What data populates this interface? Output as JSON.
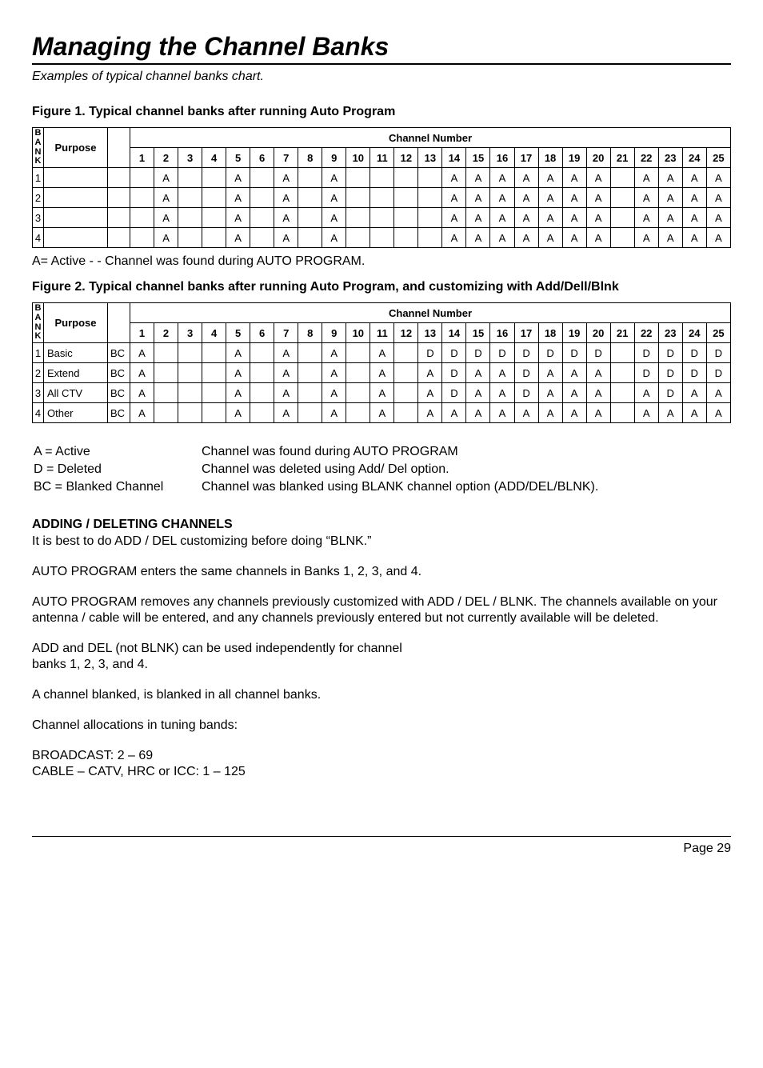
{
  "title": "Managing the Channel Banks",
  "subtitle": "Examples of typical channel banks chart.",
  "fig1": {
    "caption": "Figure 1.  Typical channel banks after running Auto Program",
    "bank_header": "BANK",
    "purpose_header": "Purpose",
    "channel_header": "Channel Number",
    "col_extra": "",
    "cols": [
      "1",
      "2",
      "3",
      "4",
      "5",
      "6",
      "7",
      "8",
      "9",
      "10",
      "11",
      "12",
      "13",
      "14",
      "15",
      "16",
      "17",
      "18",
      "19",
      "20",
      "21",
      "22",
      "23",
      "24",
      "25"
    ],
    "rows": [
      {
        "bank": "1",
        "purpose": "",
        "bc": "",
        "cells": [
          "",
          "A",
          "",
          "",
          "A",
          "",
          "A",
          "",
          "A",
          "",
          "",
          "",
          "",
          "A",
          "A",
          "A",
          "A",
          "A",
          "A",
          "A",
          "",
          "A",
          "A",
          "A",
          "A"
        ]
      },
      {
        "bank": "2",
        "purpose": "",
        "bc": "",
        "cells": [
          "",
          "A",
          "",
          "",
          "A",
          "",
          "A",
          "",
          "A",
          "",
          "",
          "",
          "",
          "A",
          "A",
          "A",
          "A",
          "A",
          "A",
          "A",
          "",
          "A",
          "A",
          "A",
          "A"
        ]
      },
      {
        "bank": "3",
        "purpose": "",
        "bc": "",
        "cells": [
          "",
          "A",
          "",
          "",
          "A",
          "",
          "A",
          "",
          "A",
          "",
          "",
          "",
          "",
          "A",
          "A",
          "A",
          "A",
          "A",
          "A",
          "A",
          "",
          "A",
          "A",
          "A",
          "A"
        ]
      },
      {
        "bank": "4",
        "purpose": "",
        "bc": "",
        "cells": [
          "",
          "A",
          "",
          "",
          "A",
          "",
          "A",
          "",
          "A",
          "",
          "",
          "",
          "",
          "A",
          "A",
          "A",
          "A",
          "A",
          "A",
          "A",
          "",
          "A",
          "A",
          "A",
          "A"
        ]
      }
    ],
    "note": "A= Active - - Channel was found during AUTO PROGRAM."
  },
  "fig2": {
    "caption": "Figure 2.  Typical channel banks after running Auto Program, and customizing with Add/Dell/Blnk",
    "bank_header": "BANK",
    "purpose_header": "Purpose",
    "channel_header": "Channel Number",
    "col_extra": "",
    "cols": [
      "1",
      "2",
      "3",
      "4",
      "5",
      "6",
      "7",
      "8",
      "9",
      "10",
      "11",
      "12",
      "13",
      "14",
      "15",
      "16",
      "17",
      "18",
      "19",
      "20",
      "21",
      "22",
      "23",
      "24",
      "25"
    ],
    "rows": [
      {
        "bank": "1",
        "purpose": "Basic",
        "bc": "BC",
        "cells": [
          "A",
          "",
          "",
          "A",
          "",
          "A",
          "",
          "A",
          "",
          "A",
          "",
          "D",
          "D",
          "D",
          "D",
          "D",
          "D",
          "D",
          "D",
          "",
          "D",
          "D",
          "D",
          "D"
        ]
      },
      {
        "bank": "2",
        "purpose": "Extend",
        "bc": "BC",
        "cells": [
          "A",
          "",
          "",
          "A",
          "",
          "A",
          "",
          "A",
          "",
          "A",
          "",
          "A",
          "D",
          "A",
          "A",
          "D",
          "A",
          "A",
          "A",
          "",
          "D",
          "D",
          "D",
          "D"
        ]
      },
      {
        "bank": "3",
        "purpose": "All CTV",
        "bc": "BC",
        "cells": [
          "A",
          "",
          "",
          "A",
          "",
          "A",
          "",
          "A",
          "",
          "A",
          "",
          "A",
          "D",
          "A",
          "A",
          "D",
          "A",
          "A",
          "A",
          "",
          "A",
          "D",
          "A",
          "A"
        ]
      },
      {
        "bank": "4",
        "purpose": "Other",
        "bc": "BC",
        "cells": [
          "A",
          "",
          "",
          "A",
          "",
          "A",
          "",
          "A",
          "",
          "A",
          "",
          "A",
          "A",
          "A",
          "A",
          "A",
          "A",
          "A",
          "A",
          "",
          "A",
          "A",
          "A",
          "A"
        ]
      }
    ]
  },
  "legend": [
    {
      "k": "A = Active",
      "v": "Channel was found during AUTO PROGRAM"
    },
    {
      "k": "D = Deleted",
      "v": "Channel was deleted using Add/ Del option."
    },
    {
      "k": "BC = Blanked Channel",
      "v": "Channel was blanked using BLANK channel option (ADD/DEL/BLNK)."
    }
  ],
  "section_heading": "ADDING / DELETING CHANNELS",
  "para1": "It is best to do ADD / DEL customizing before doing “BLNK.”",
  "para2": "AUTO PROGRAM enters the same channels in Banks 1, 2, 3, and 4.",
  "para3": "AUTO PROGRAM removes any channels previously customized with ADD / DEL / BLNK. The channels available on your antenna / cable will be entered, and any channels previously entered but not currently available will be deleted.",
  "para4": "ADD and DEL (not BLNK) can be used independently for channel\nbanks 1, 2, 3, and 4.",
  "para5": "A channel blanked, is blanked in all channel banks.",
  "para6": "Channel allocations in tuning bands:",
  "para7": "BROADCAST: 2 – 69\nCABLE – CATV, HRC or ICC: 1 – 125",
  "page_label": "Page 29"
}
